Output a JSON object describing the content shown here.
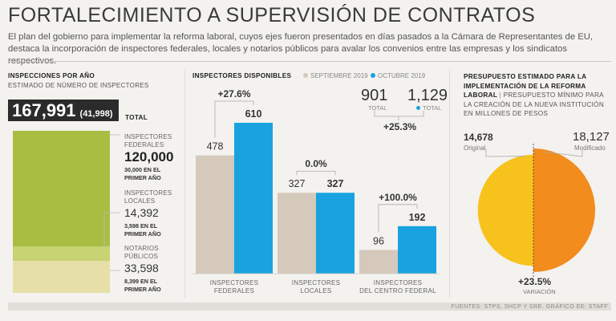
{
  "title": "FORTALECIMIENTO A SUPERVISIÓN DE CONTRATOS",
  "subtitle": "El plan del gobierno para implementar la reforma laboral, cuyos ejes fueron presentados en días pasados a la Cámara de Representantes de EU, destaca la incorporación de inspectores federales, locales y notarios públicos para avalar los convenios entre las empresas y los sindicatos respectivos.",
  "colors": {
    "green": "#a9bd42",
    "green_light": "#d8dfa0",
    "beige": "#e6e0a8",
    "gray_bar": "#d5c9bb",
    "blue": "#18a3e0",
    "yellow": "#f7c21c",
    "orange": "#f28c1c"
  },
  "left": {
    "header": "INSPECCIONES POR AÑO",
    "subheader": "ESTIMADO DE NÚMERO DE INSPECTORES",
    "total_value": "167,991",
    "total_paren": "(41,998)",
    "total_label": "TOTAL",
    "items": [
      {
        "label": "INSPECTORES FEDERALES",
        "value": "120,000",
        "first_year": "30,000 EN EL PRIMER AÑO",
        "amount": 120000
      },
      {
        "label": "INSPECTORES LOCALES",
        "value": "14,392",
        "first_year": "3,598 EN EL PRIMER AÑO",
        "amount": 14392
      },
      {
        "label": "NOTARIOS PÚBLICOS",
        "value": "33,598",
        "first_year": "8,399 EN EL PRIMER AÑO",
        "amount": 33598
      }
    ]
  },
  "middle": {
    "header": "INSPECTORES DISPONIBLES",
    "legend_sep": "SEPTIEMBRE 2019",
    "legend_oct": "OCTUBRE 2019",
    "total_sep": "901",
    "total_oct": "1,129",
    "total_label": "TOTAL",
    "total_change": "+25.3%"
  },
  "chart_data": {
    "type": "bar",
    "categories": [
      "INSPECTORES FEDERALES",
      "INSPECTORES LOCALES",
      "INSPECTORES DEL CENTRO FEDERAL"
    ],
    "series": [
      {
        "name": "SEPTIEMBRE 2019",
        "values": [
          478,
          327,
          96
        ]
      },
      {
        "name": "OCTUBRE 2019",
        "values": [
          610,
          327,
          192
        ]
      }
    ],
    "changes": [
      "+27.6%",
      "0.0%",
      "+100.0%"
    ],
    "ylim": [
      0,
      610
    ]
  },
  "right": {
    "header": "PRESUPUESTO ESTIMADO PARA LA IMPLEMENTACIÓN DE LA REFORMA LABORAL",
    "header_sub": "PRESUPUESTO MÍNIMO PARA LA CREACIÓN DE LA NUEVA INSTITUCIÓN EN MILLONES DE PESOS",
    "original_value": "14,678",
    "original_label": "Original",
    "modified_value": "18,127",
    "modified_label": "Modificado",
    "variation_value": "+23.5%",
    "variation_label": "VARIACIÓN",
    "original_amount": 14678,
    "modified_amount": 18127
  },
  "source": "FUENTES: STPS, SHCP Y SRE. GRÁFICO EE: STAFF"
}
